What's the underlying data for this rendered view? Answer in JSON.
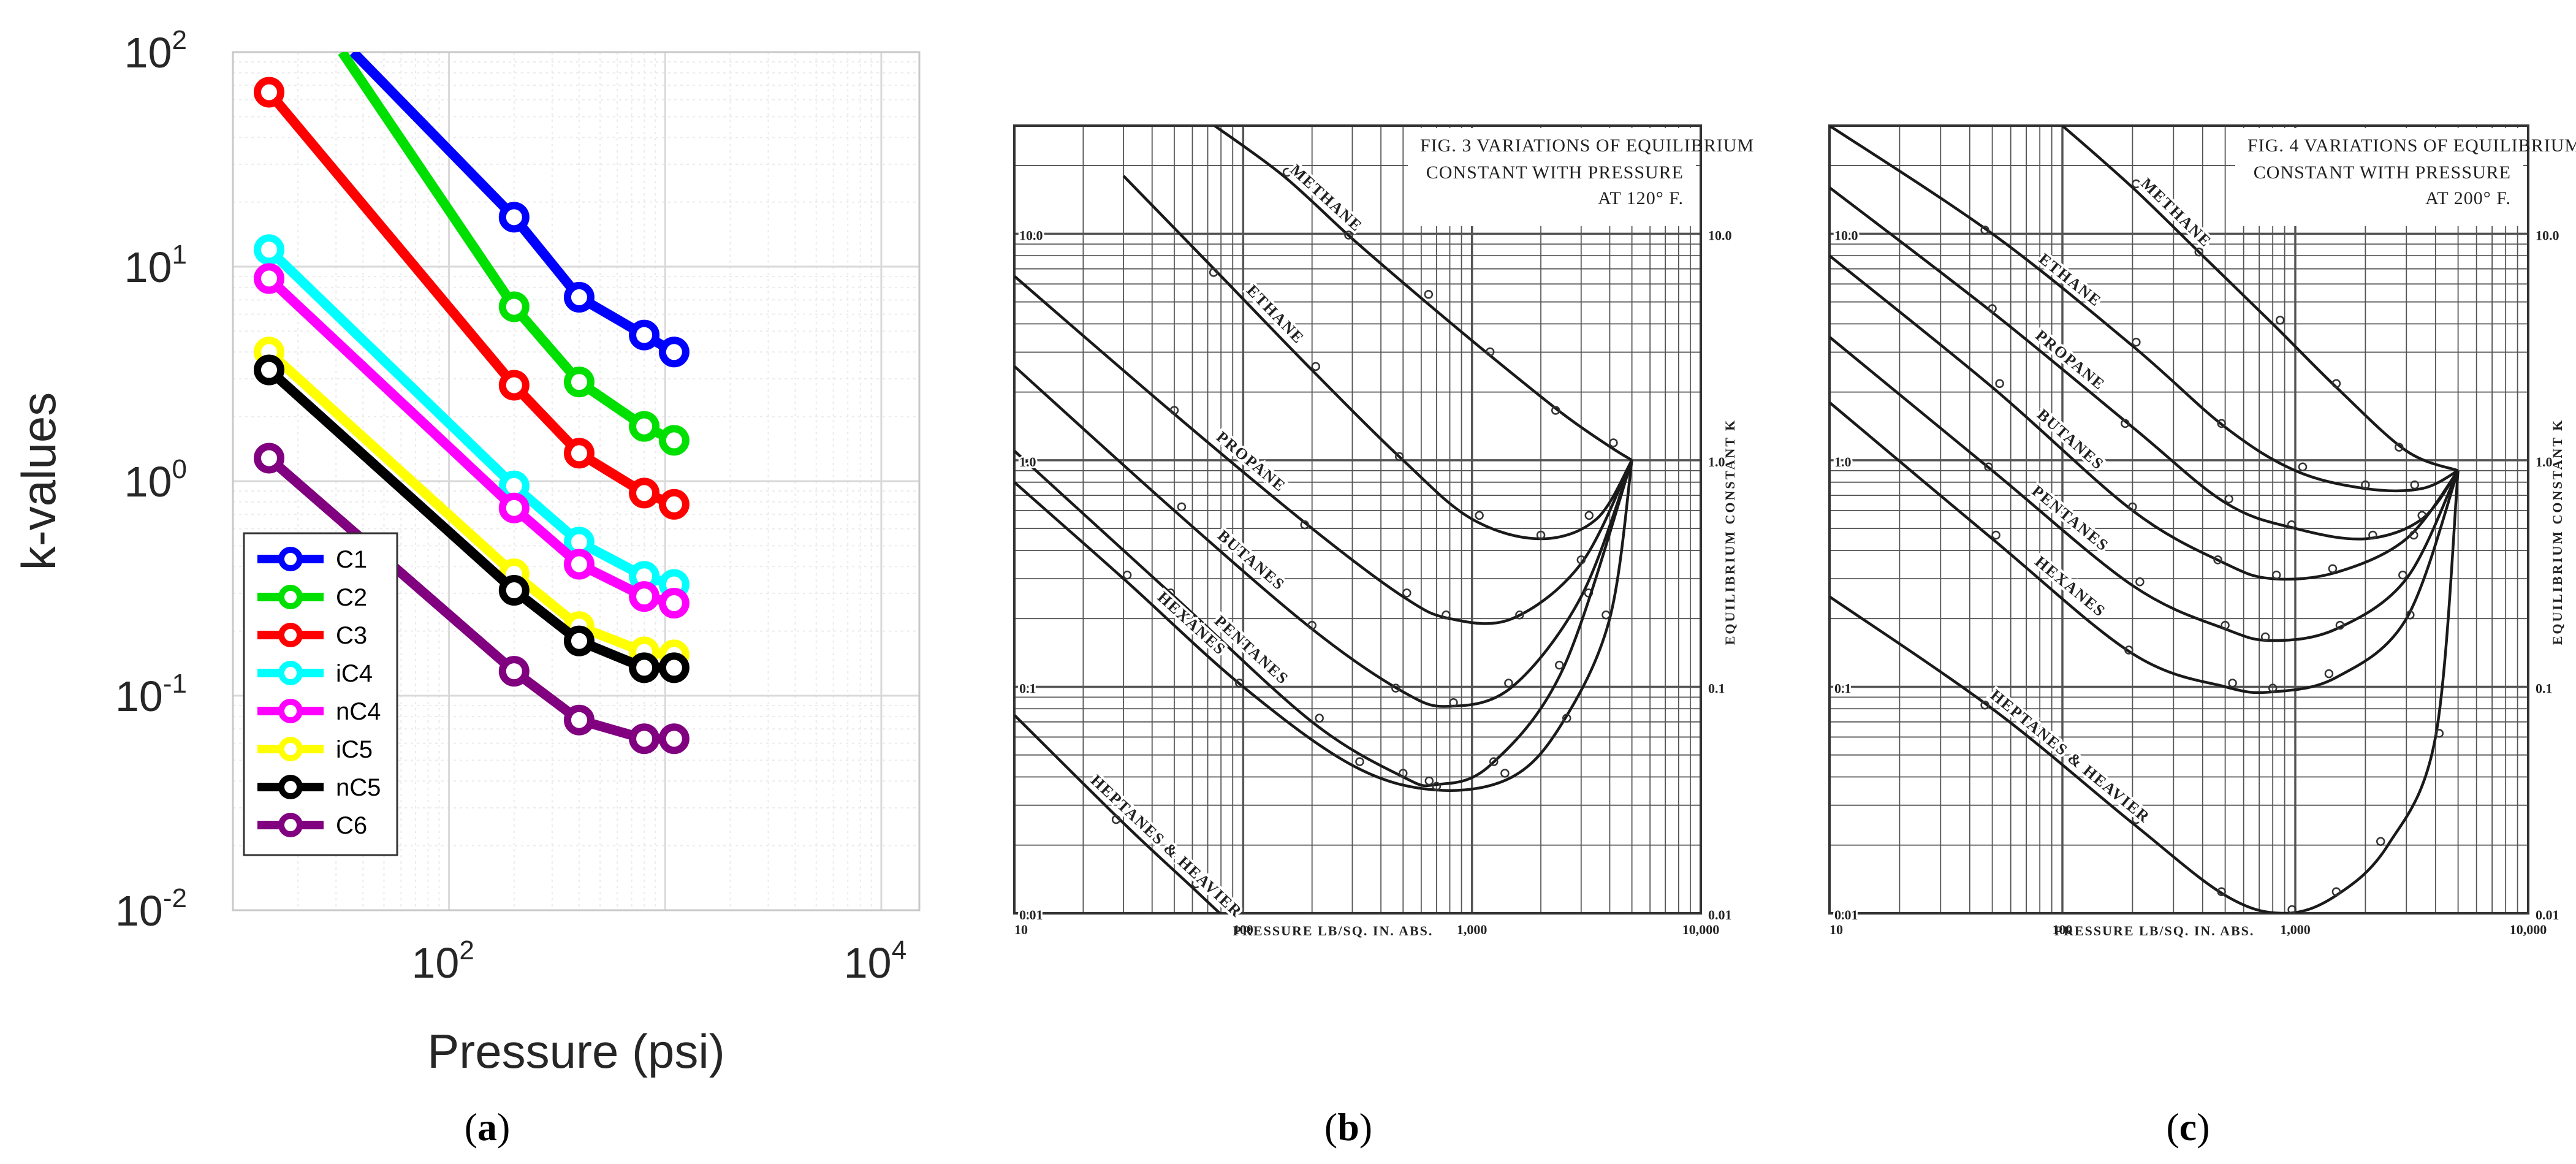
{
  "chart_data": [
    {
      "panel": "a",
      "type": "line",
      "xlabel": "Pressure (psi)",
      "ylabel": "k-values",
      "xscale": "log",
      "yscale": "log",
      "xlim": [
        10,
        15000
      ],
      "ylim": [
        0.01,
        100
      ],
      "xticks": [
        {
          "base": "10",
          "exp": "2",
          "value": 100
        },
        {
          "base": "10",
          "exp": "4",
          "value": 10000
        }
      ],
      "yticks": [
        {
          "base": "10",
          "exp": "2",
          "value": 100
        },
        {
          "base": "10",
          "exp": "1",
          "value": 10
        },
        {
          "base": "10",
          "exp": "0",
          "value": 1
        },
        {
          "base": "10",
          "exp": "-1",
          "value": 0.1
        },
        {
          "base": "10",
          "exp": "-2",
          "value": 0.01
        }
      ],
      "grid": true,
      "legend_position": "bottom-left",
      "series": [
        {
          "name": "C1",
          "color": "#0000ff",
          "x": [
            36,
            200,
            400,
            800,
            1100
          ],
          "y": [
            100,
            17,
            7.2,
            4.8,
            4.0
          ]
        },
        {
          "name": "C2",
          "color": "#00e000",
          "x": [
            32,
            200,
            400,
            800,
            1100
          ],
          "y": [
            100,
            6.5,
            2.9,
            1.8,
            1.55
          ]
        },
        {
          "name": "C3",
          "color": "#ff0000",
          "x": [
            14.7,
            200,
            400,
            800,
            1100
          ],
          "y": [
            65,
            2.8,
            1.35,
            0.88,
            0.78
          ]
        },
        {
          "name": "iC4",
          "color": "#00ffff",
          "x": [
            14.7,
            200,
            400,
            800,
            1100
          ],
          "y": [
            12,
            0.95,
            0.52,
            0.36,
            0.33
          ]
        },
        {
          "name": "nC4",
          "color": "#ff00ff",
          "x": [
            14.7,
            200,
            400,
            800,
            1100
          ],
          "y": [
            8.8,
            0.75,
            0.41,
            0.29,
            0.27
          ]
        },
        {
          "name": "iC5",
          "color": "#ffff00",
          "x": [
            14.7,
            200,
            400,
            800,
            1100
          ],
          "y": [
            4.0,
            0.37,
            0.21,
            0.16,
            0.155
          ]
        },
        {
          "name": "nC5",
          "color": "#000000",
          "x": [
            14.7,
            200,
            400,
            800,
            1100
          ],
          "y": [
            3.3,
            0.31,
            0.18,
            0.135,
            0.135
          ]
        },
        {
          "name": "C6",
          "color": "#800080",
          "x": [
            14.7,
            200,
            400,
            800,
            1100
          ],
          "y": [
            1.28,
            0.13,
            0.077,
            0.063,
            0.063
          ]
        }
      ]
    },
    {
      "panel": "b",
      "type": "line",
      "title": "FIG. 3  VARIATIONS OF EQUILIBRIUM",
      "title_line2": "CONSTANT WITH PRESSURE",
      "title_line3": "AT 120° F.",
      "xlabel": "PRESSURE LB/SQ. IN. ABS.",
      "ylabel": "EQUILIBRIUM CONSTANT K",
      "xscale": "log",
      "yscale": "log",
      "xlim": [
        10,
        10000
      ],
      "ylim": [
        0.01,
        30
      ],
      "xtick_labels": [
        "10",
        "100",
        "1,000",
        "10,000"
      ],
      "ytick_labels_left": [
        "10.0",
        "1.0",
        "0.1",
        "0.01"
      ],
      "ytick_labels_right": [
        "10.0",
        "1.0",
        "0.1",
        "0.01"
      ],
      "convergence_pressure": 5000,
      "series": [
        {
          "name": "METHANE",
          "x": [
            75,
            150,
            300,
            600,
            1200,
            2500,
            4000,
            5000
          ],
          "y": [
            30,
            18,
            9.5,
            5.2,
            2.9,
            1.6,
            1.15,
            1.0
          ]
        },
        {
          "name": "ETHANE",
          "x": [
            30,
            80,
            200,
            500,
            1000,
            2000,
            3500,
            5000
          ],
          "y": [
            18,
            6.5,
            2.5,
            1.0,
            0.55,
            0.45,
            0.55,
            1.0
          ]
        },
        {
          "name": "PROPANE",
          "x": [
            10,
            50,
            200,
            500,
            800,
            1500,
            3000,
            5000
          ],
          "y": [
            6.5,
            1.6,
            0.5,
            0.25,
            0.2,
            0.2,
            0.35,
            1.0
          ]
        },
        {
          "name": "BUTANES",
          "x": [
            10,
            50,
            200,
            500,
            800,
            1500,
            3000,
            5000
          ],
          "y": [
            2.6,
            0.6,
            0.18,
            0.095,
            0.082,
            0.1,
            0.25,
            1.0
          ]
        },
        {
          "name": "PENTANES",
          "x": [
            10,
            50,
            200,
            500,
            700,
            1200,
            2500,
            5000
          ],
          "y": [
            1.1,
            0.25,
            0.07,
            0.04,
            0.037,
            0.045,
            0.12,
            1.0
          ]
        },
        {
          "name": "HEXANES",
          "x": [
            10,
            30,
            100,
            300,
            700,
            1500,
            2500,
            4000,
            5000
          ],
          "y": [
            0.8,
            0.3,
            0.1,
            0.045,
            0.035,
            0.04,
            0.07,
            0.2,
            1.0
          ]
        },
        {
          "name": "HEPTANES & HEAVIER",
          "x": [
            10,
            30,
            60,
            100
          ],
          "y": [
            0.075,
            0.025,
            0.013,
            0.008
          ]
        }
      ]
    },
    {
      "panel": "c",
      "type": "line",
      "title": "FIG. 4  VARIATIONS OF EQUILIBRIUM",
      "title_line2": "CONSTANT WITH PRESSURE",
      "title_line3": "AT 200° F.",
      "xlabel": "PRESSURE LB/SQ. IN. ABS.",
      "ylabel": "EQUILIBRIUM CONSTANT K",
      "xscale": "log",
      "yscale": "log",
      "xlim": [
        10,
        10000
      ],
      "ylim": [
        0.01,
        30
      ],
      "xtick_labels": [
        "10",
        "100",
        "1,000",
        "10,000"
      ],
      "ytick_labels_left": [
        "10.0",
        "1.0",
        "0.1",
        "0.01"
      ],
      "ytick_labels_right": [
        "10.0",
        "1.0",
        "0.1",
        "0.01"
      ],
      "convergence_pressure": 5000,
      "series": [
        {
          "name": "METHANE",
          "x": [
            100,
            200,
            400,
            800,
            1500,
            3000,
            5000
          ],
          "y": [
            30,
            16,
            8.0,
            4.0,
            2.1,
            1.1,
            0.9
          ]
        },
        {
          "name": "ETHANE",
          "x": [
            10,
            50,
            200,
            500,
            1000,
            2000,
            3500,
            5000
          ],
          "y": [
            30,
            10,
            3.2,
            1.4,
            0.9,
            0.75,
            0.75,
            0.9
          ]
        },
        {
          "name": "PROPANE",
          "x": [
            10,
            50,
            200,
            500,
            1000,
            2000,
            3500,
            5000
          ],
          "y": [
            16,
            4.5,
            1.4,
            0.65,
            0.5,
            0.45,
            0.55,
            0.9
          ]
        },
        {
          "name": "BUTANES",
          "x": [
            10,
            50,
            200,
            500,
            800,
            1500,
            3000,
            5000
          ],
          "y": [
            8.0,
            2.1,
            0.6,
            0.35,
            0.3,
            0.32,
            0.45,
            0.9
          ]
        },
        {
          "name": "PENTANES",
          "x": [
            10,
            50,
            200,
            500,
            800,
            1500,
            3000,
            5000
          ],
          "y": [
            3.5,
            0.9,
            0.28,
            0.18,
            0.16,
            0.18,
            0.3,
            0.9
          ]
        },
        {
          "name": "HEXANES",
          "x": [
            10,
            50,
            200,
            500,
            800,
            1500,
            3000,
            5000
          ],
          "y": [
            1.8,
            0.45,
            0.14,
            0.1,
            0.095,
            0.11,
            0.2,
            0.9
          ]
        },
        {
          "name": "HEPTANES & HEAVIER",
          "x": [
            10,
            50,
            200,
            500,
            900,
            1500,
            2500,
            4000,
            5000
          ],
          "y": [
            0.25,
            0.08,
            0.025,
            0.012,
            0.01,
            0.012,
            0.02,
            0.06,
            0.9
          ]
        }
      ]
    }
  ],
  "captions": [
    {
      "open": "(",
      "letter": "a",
      "close": ")"
    },
    {
      "open": "(",
      "letter": "b",
      "close": ")"
    },
    {
      "open": "(",
      "letter": "c",
      "close": ")"
    }
  ]
}
